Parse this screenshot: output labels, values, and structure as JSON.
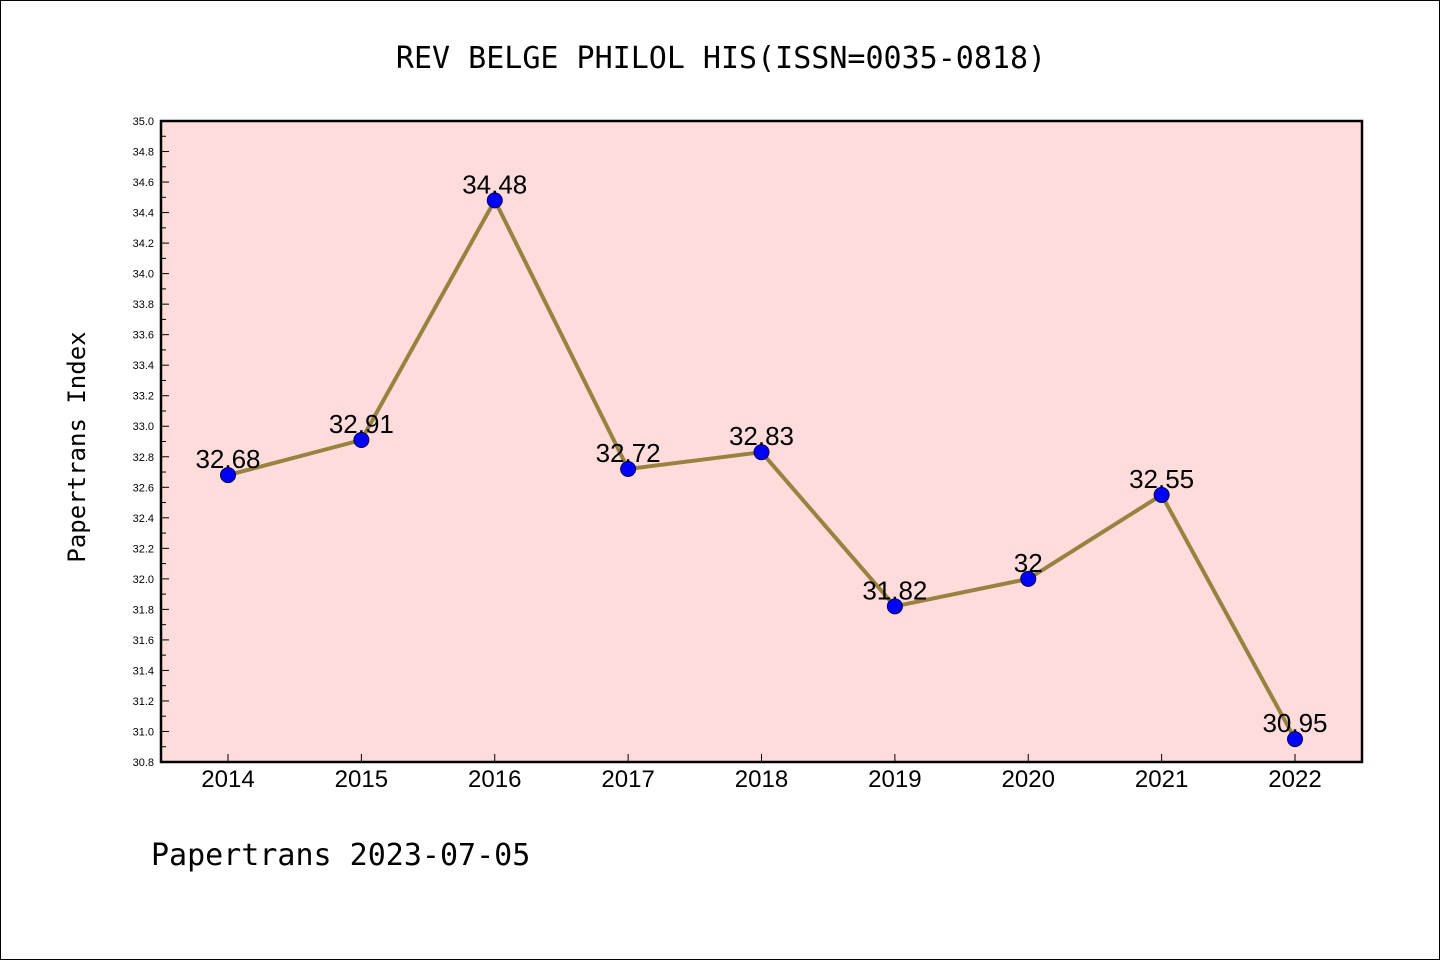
{
  "footer": "Papertrans 2023-07-05",
  "chart_data": {
    "type": "line",
    "title": "REV BELGE PHILOL HIS(ISSN=0035-0818)",
    "xlabel": "",
    "ylabel": "Papertrans Index",
    "categories": [
      "2014",
      "2015",
      "2016",
      "2017",
      "2018",
      "2019",
      "2020",
      "2021",
      "2022"
    ],
    "values": [
      32.68,
      32.91,
      34.48,
      32.72,
      32.83,
      31.82,
      32,
      32.55,
      30.95
    ],
    "data_labels": [
      "32.68",
      "32.91",
      "34.48",
      "32.72",
      "32.83",
      "31.82",
      "32",
      "32.55",
      "30.95"
    ],
    "ylim": [
      30.8,
      35.0
    ],
    "yticks": [
      "30.8",
      "31.0",
      "31.2",
      "31.4",
      "31.6",
      "31.8",
      "32.0",
      "32.2",
      "32.4",
      "32.6",
      "32.8",
      "33.0",
      "33.2",
      "33.4",
      "33.6",
      "33.8",
      "34.0",
      "34.2",
      "34.4",
      "34.6",
      "34.8",
      "35.0"
    ],
    "grid": false,
    "legend": "none",
    "colors": {
      "plot_background": "#ffdcdc",
      "line": "#98823f",
      "marker": "#0000ff",
      "marker_edge": "#00004d"
    }
  }
}
